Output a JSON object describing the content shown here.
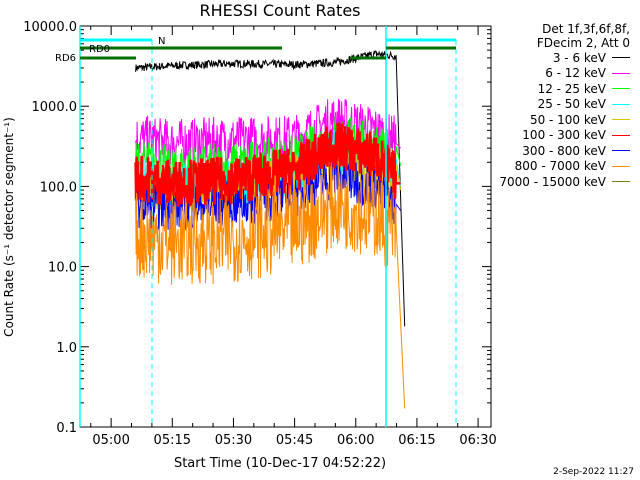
{
  "chart_data": {
    "type": "line",
    "title": "RHESSI Count Rates",
    "xlabel": "Start Time (10-Dec-17 04:52:22)",
    "ylabel": "Count Rate (s⁻¹ detector segment⁻¹)",
    "y_scale": "log",
    "ylim": [
      0.1,
      10000
    ],
    "xlim": [
      "04:52",
      "06:33"
    ],
    "x_ticks": [
      "05:00",
      "05:15",
      "05:30",
      "05:45",
      "06:00",
      "06:15",
      "06:30"
    ],
    "y_ticks": [
      "0.1",
      "1.0",
      "10.0",
      "100.0",
      "1000.0",
      "10000.0"
    ],
    "series": [
      {
        "name": "3 - 6 keV",
        "color": "#000000",
        "x": [
          "05:06",
          "05:15",
          "05:30",
          "05:45",
          "05:55",
          "06:05",
          "06:10",
          "06:12"
        ],
        "values": [
          3000,
          3200,
          3400,
          3300,
          3500,
          4500,
          4200,
          1.8
        ]
      },
      {
        "name": "6 - 12 keV",
        "color": "#ff00ff",
        "x": [
          "05:06",
          "05:15",
          "05:30",
          "05:45",
          "05:55",
          "06:05",
          "06:10",
          "06:11"
        ],
        "values": [
          400,
          350,
          380,
          400,
          700,
          500,
          380,
          300
        ]
      },
      {
        "name": "12 - 25 keV",
        "color": "#00ff00",
        "x": [
          "05:06",
          "05:15",
          "05:30",
          "05:45",
          "05:55",
          "06:05",
          "06:10",
          "06:11"
        ],
        "values": [
          200,
          170,
          180,
          220,
          420,
          320,
          200,
          180
        ]
      },
      {
        "name": "25 - 50 keV",
        "color": "#00ffff",
        "x": [
          "05:06",
          "05:15",
          "05:30",
          "05:45",
          "05:55",
          "06:05",
          "06:10",
          "06:11"
        ],
        "values": [
          120,
          100,
          110,
          140,
          260,
          200,
          120,
          100
        ]
      },
      {
        "name": "50 - 100 keV",
        "color": "#e0c000",
        "x": [
          "05:06",
          "05:15",
          "05:30",
          "05:45",
          "05:55",
          "06:05",
          "06:10",
          "06:11"
        ],
        "values": [
          100,
          80,
          90,
          130,
          220,
          160,
          100,
          90
        ]
      },
      {
        "name": "100 - 300 keV",
        "color": "#ff0000",
        "x": [
          "05:06",
          "05:15",
          "05:30",
          "05:45",
          "05:55",
          "06:05",
          "06:10",
          "06:11"
        ],
        "values": [
          130,
          110,
          120,
          160,
          330,
          240,
          130,
          110
        ]
      },
      {
        "name": "300 - 800 keV",
        "color": "#0000ff",
        "x": [
          "05:06",
          "05:15",
          "05:30",
          "05:45",
          "05:55",
          "06:05",
          "06:10",
          "06:11"
        ],
        "values": [
          60,
          55,
          60,
          80,
          140,
          100,
          60,
          50
        ]
      },
      {
        "name": "800 - 7000 keV",
        "color": "#ff8c00",
        "x": [
          "05:06",
          "05:15",
          "05:30",
          "05:45",
          "05:55",
          "06:05",
          "06:10",
          "06:12"
        ],
        "values": [
          25,
          20,
          22,
          30,
          60,
          45,
          25,
          0.17
        ]
      },
      {
        "name": "7000 - 15000 keV",
        "color": "#808000",
        "x": [],
        "values": []
      }
    ],
    "annotations": {
      "legend_header": [
        "Det 1f,3f,6f,8f,",
        "FDecim 2, Att 0"
      ],
      "rd0_label": "RD0",
      "rd6_label": "RD6",
      "n_label": "N",
      "timestamp": "2-Sep-2022 11:27"
    }
  }
}
